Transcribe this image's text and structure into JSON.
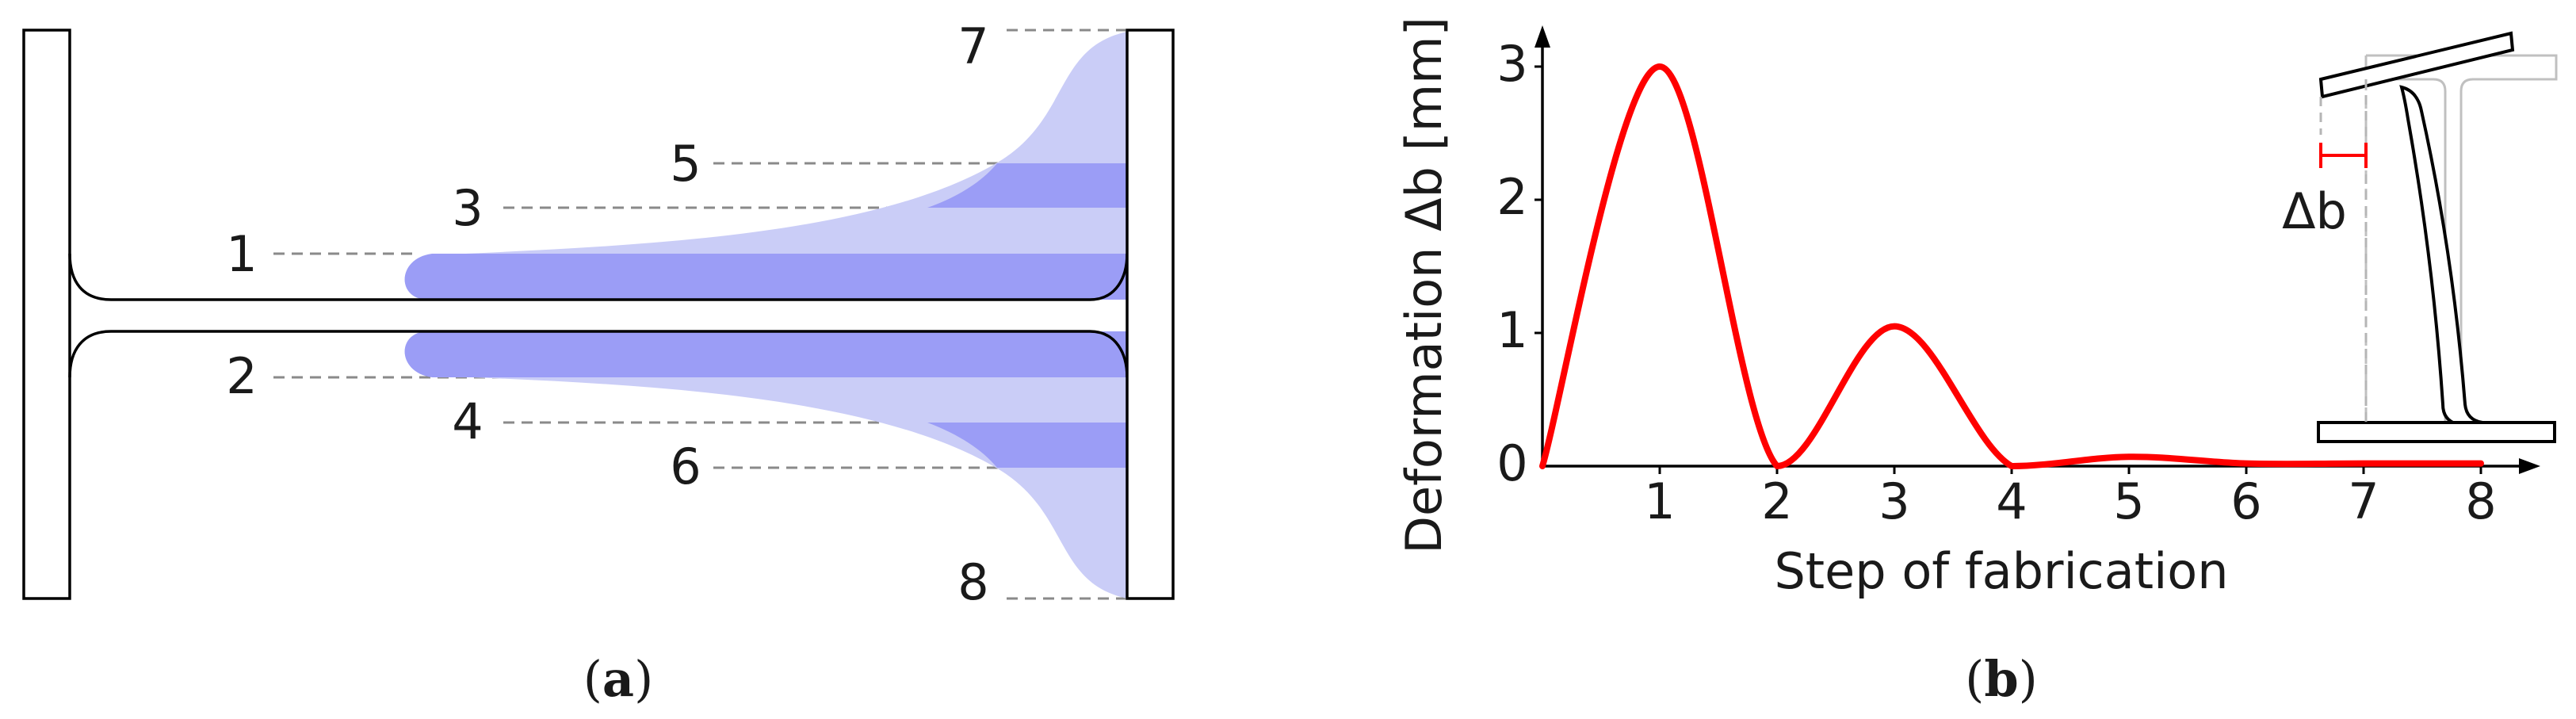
{
  "panel_a": {
    "sublabel_open": "(",
    "sublabel_letter": "a",
    "sublabel_close": ")",
    "layer_labels": [
      "1",
      "2",
      "3",
      "4",
      "5",
      "6",
      "7",
      "8"
    ],
    "colors": {
      "light_fill": "#cacdf7",
      "dark_fill": "#9b9df6",
      "outline": "#000000",
      "leader": "#8a8a8a"
    }
  },
  "panel_b": {
    "sublabel_open": "(",
    "sublabel_letter": "b",
    "sublabel_close": ")",
    "delta_label": "Δb",
    "chart_data": {
      "type": "line",
      "xlabel": "Step of fabrication",
      "ylabel": "Deformation  Δb [mm]",
      "x_ticks": [
        1,
        2,
        3,
        4,
        5,
        6,
        7,
        8
      ],
      "y_ticks": [
        0,
        1,
        2,
        3
      ],
      "xlim": [
        0,
        8.3
      ],
      "ylim": [
        0,
        3.3
      ],
      "series": [
        {
          "color": "#ff0000",
          "x": [
            0,
            1,
            2,
            3,
            4,
            5,
            6,
            7,
            8
          ],
          "y": [
            0,
            3.0,
            0,
            1.05,
            0,
            0.07,
            0.02,
            0.02,
            0.02
          ]
        }
      ]
    }
  }
}
